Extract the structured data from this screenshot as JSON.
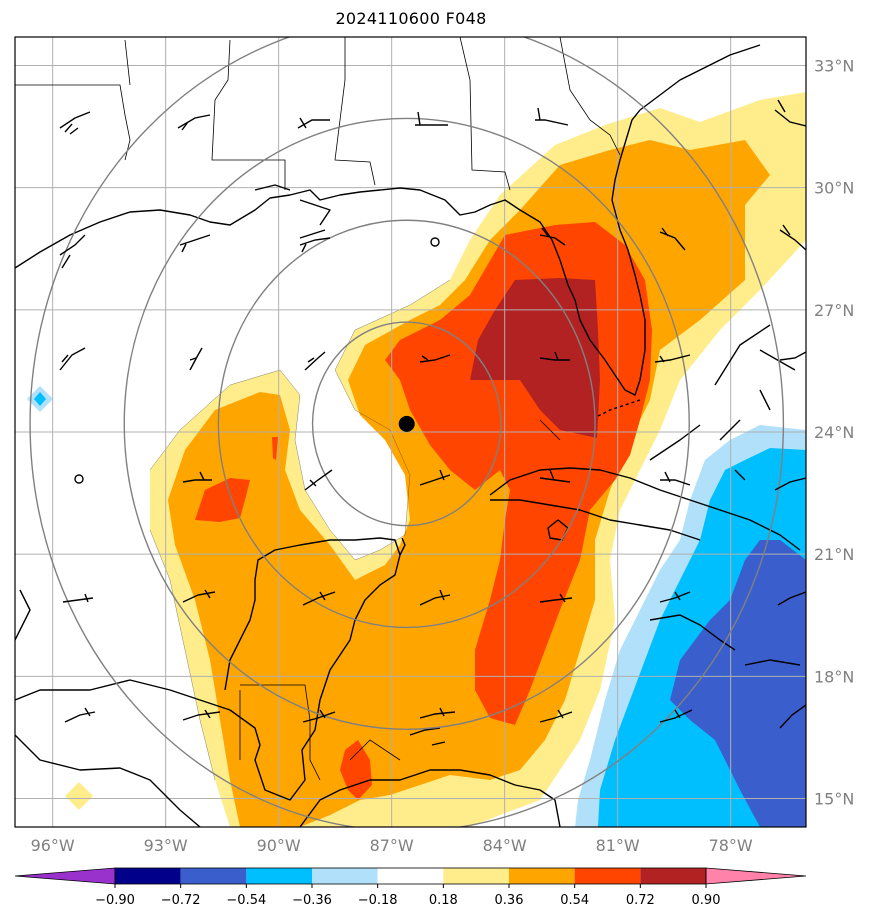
{
  "title": "2024110600 F048",
  "map": {
    "lon_range": [
      -97,
      -76
    ],
    "lat_range": [
      14.3,
      33.7
    ],
    "lon_ticks": [
      {
        "value": -96,
        "label": "96°W"
      },
      {
        "value": -93,
        "label": "93°W"
      },
      {
        "value": -90,
        "label": "90°W"
      },
      {
        "value": -87,
        "label": "87°W"
      },
      {
        "value": -84,
        "label": "84°W"
      },
      {
        "value": -81,
        "label": "81°W"
      },
      {
        "value": -78,
        "label": "78°W"
      }
    ],
    "lat_ticks": [
      {
        "value": 15,
        "label": "15°N"
      },
      {
        "value": 18,
        "label": "18°N"
      },
      {
        "value": 21,
        "label": "21°N"
      },
      {
        "value": 24,
        "label": "24°N"
      },
      {
        "value": 27,
        "label": "27°N"
      },
      {
        "value": 30,
        "label": "30°N"
      },
      {
        "value": 33,
        "label": "33°N"
      }
    ],
    "storm_center": {
      "lon": -86.6,
      "lat": 24.2
    },
    "range_ring_radii_deg": [
      2.5,
      5,
      7.5,
      10
    ],
    "colors": {
      "neg_extend": "#9932cc",
      "n090": "#00008b",
      "n072": "#3a5fcd",
      "n054": "#00bfff",
      "n036": "#b0e0fa",
      "zero": "#ffffff",
      "p018": "#ffec8b",
      "p036": "#ffa500",
      "p054": "#ff4500",
      "p072": "#b22222",
      "pos_extend": "#ff82ab"
    }
  },
  "colorbar": {
    "ticks": [
      "−0.90",
      "−0.72",
      "−0.54",
      "−0.36",
      "−0.18",
      "0.18",
      "0.36",
      "0.54",
      "0.72",
      "0.90"
    ],
    "colors": [
      "#9932cc",
      "#00008b",
      "#3a5fcd",
      "#00bfff",
      "#b0e0fa",
      "#ffffff",
      "#ffec8b",
      "#ffa500",
      "#ff4500",
      "#b22222",
      "#ff82ab"
    ]
  }
}
